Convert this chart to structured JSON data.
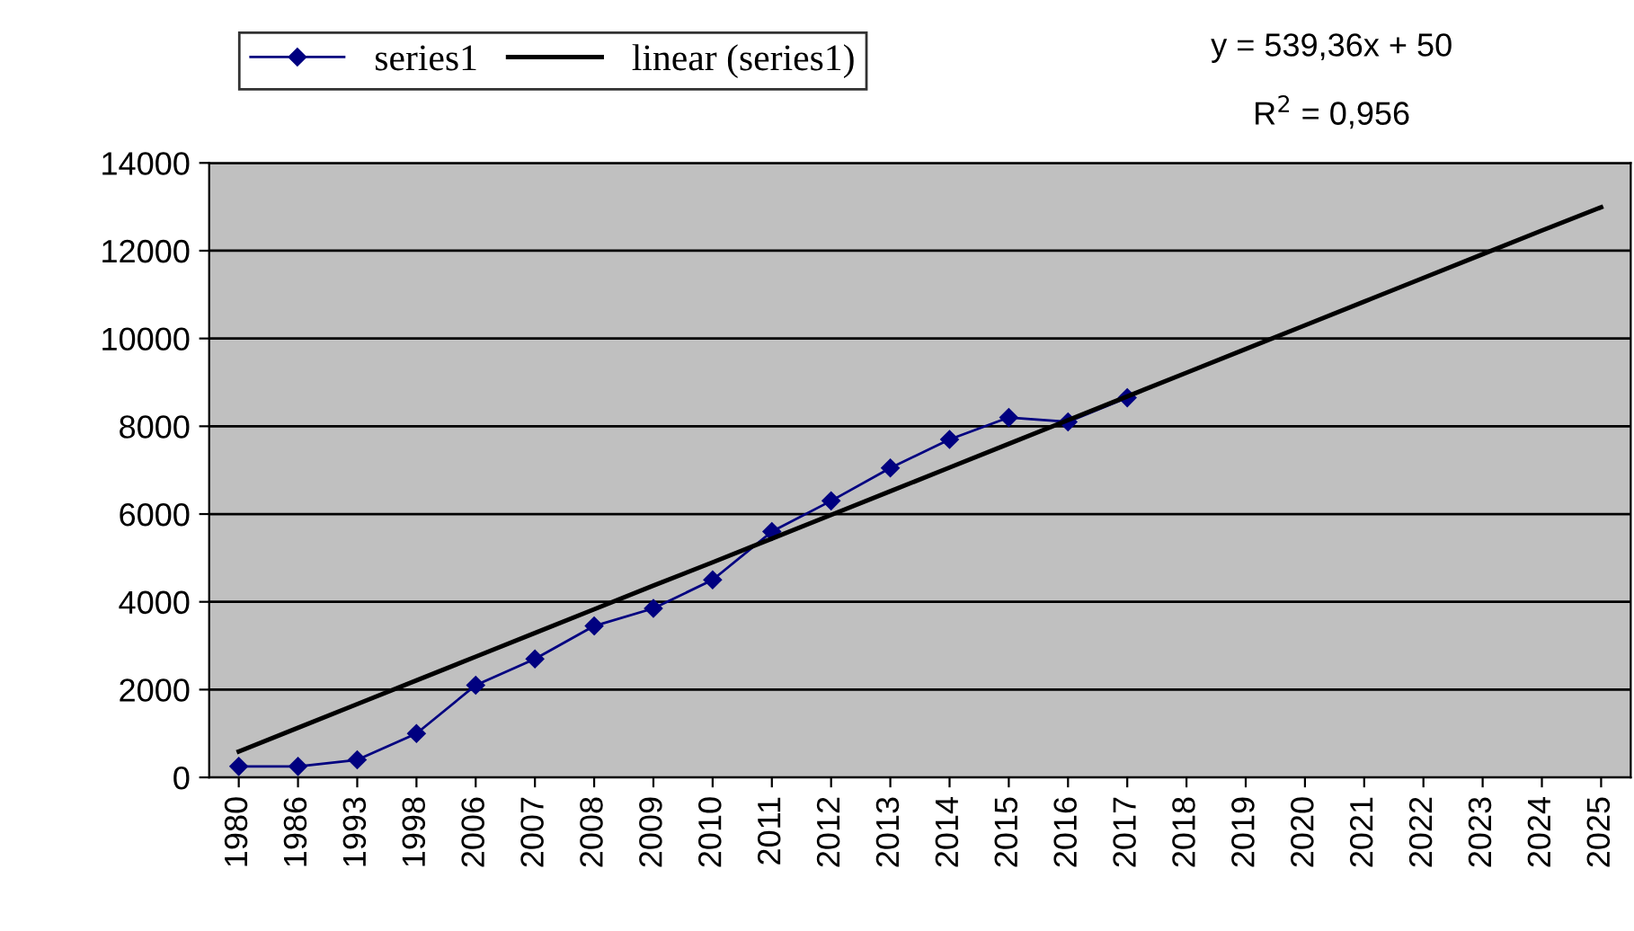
{
  "chart_data": {
    "type": "line",
    "categories": [
      "1980",
      "1986",
      "1993",
      "1998",
      "2006",
      "2007",
      "2008",
      "2009",
      "2010",
      "2011",
      "2012",
      "2013",
      "2014",
      "2015",
      "2016",
      "2017",
      "2018",
      "2019",
      "2020",
      "2021",
      "2022",
      "2023",
      "2024",
      "2025"
    ],
    "series": [
      {
        "name": "series1",
        "color": "#000080",
        "marker": "diamond",
        "values": [
          250,
          250,
          400,
          1000,
          2100,
          2700,
          3450,
          3850,
          4500,
          5600,
          6300,
          7050,
          7700,
          8200,
          8100,
          8650,
          null,
          null,
          null,
          null,
          null,
          null,
          null,
          null
        ]
      },
      {
        "name": "linear (series1)",
        "color": "#000000",
        "marker": "none",
        "values": [
          590,
          1130,
          1670,
          2210,
          2750,
          3290,
          3830,
          4370,
          4900,
          5440,
          5980,
          6520,
          7060,
          7600,
          8140,
          8680,
          9220,
          9760,
          10300,
          10840,
          11380,
          11920,
          12460,
          12990
        ]
      }
    ],
    "ylim": [
      0,
      14000
    ],
    "yticks": [
      0,
      2000,
      4000,
      6000,
      8000,
      10000,
      12000,
      14000
    ],
    "grid": "y",
    "legend": "top left",
    "annotations": [
      "y = 539,36x + 50",
      "R$^{2}$ = 0,956"
    ]
  }
}
